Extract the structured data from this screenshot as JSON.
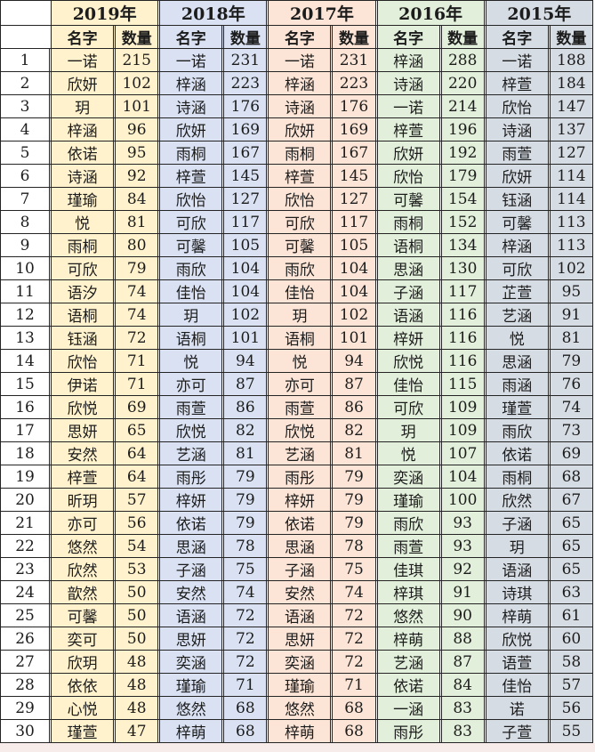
{
  "chart_data": {
    "type": "table",
    "title": "",
    "row_count": 30,
    "subheaders": {
      "name": "名字",
      "count": "数量"
    },
    "row_numbers": [
      1,
      2,
      3,
      4,
      5,
      6,
      7,
      8,
      9,
      10,
      11,
      12,
      13,
      14,
      15,
      16,
      17,
      18,
      19,
      20,
      21,
      22,
      23,
      24,
      25,
      26,
      27,
      28,
      29,
      30
    ],
    "years": [
      {
        "label": "2019年",
        "fill": "#FFF2CC",
        "names": [
          "一诺",
          "欣妍",
          "玥",
          "梓涵",
          "依诺",
          "诗涵",
          "瑾瑜",
          "悦",
          "雨桐",
          "可欣",
          "语汐",
          "语桐",
          "钰涵",
          "欣怡",
          "伊诺",
          "欣悦",
          "思妍",
          "安然",
          "梓萱",
          "昕玥",
          "亦可",
          "悠然",
          "欣然",
          "歆然",
          "可馨",
          "奕可",
          "欣玥",
          "依依",
          "心悦",
          "瑾萱"
        ],
        "counts": [
          215,
          102,
          101,
          96,
          95,
          92,
          84,
          81,
          80,
          79,
          74,
          74,
          72,
          71,
          71,
          69,
          65,
          64,
          64,
          57,
          56,
          54,
          53,
          50,
          50,
          50,
          48,
          48,
          48,
          47
        ]
      },
      {
        "label": "2018年",
        "fill": "#D9E1F2",
        "names": [
          "一诺",
          "梓涵",
          "诗涵",
          "欣妍",
          "雨桐",
          "梓萱",
          "欣怡",
          "可欣",
          "可馨",
          "雨欣",
          "佳怡",
          "玥",
          "语桐",
          "悦",
          "亦可",
          "雨萱",
          "欣悦",
          "艺涵",
          "雨彤",
          "梓妍",
          "依诺",
          "思涵",
          "子涵",
          "安然",
          "语涵",
          "思妍",
          "奕涵",
          "瑾瑜",
          "悠然",
          "梓萌"
        ],
        "counts": [
          231,
          223,
          176,
          169,
          167,
          145,
          127,
          117,
          105,
          104,
          104,
          102,
          101,
          94,
          87,
          86,
          82,
          81,
          79,
          79,
          79,
          78,
          75,
          74,
          72,
          72,
          72,
          71,
          68,
          68
        ]
      },
      {
        "label": "2017年",
        "fill": "#FCE4D6",
        "names": [
          "一诺",
          "梓涵",
          "诗涵",
          "欣妍",
          "雨桐",
          "梓萱",
          "欣怡",
          "可欣",
          "可馨",
          "雨欣",
          "佳怡",
          "玥",
          "语桐",
          "悦",
          "亦可",
          "雨萱",
          "欣悦",
          "艺涵",
          "雨彤",
          "梓妍",
          "依诺",
          "思涵",
          "子涵",
          "安然",
          "语涵",
          "思妍",
          "奕涵",
          "瑾瑜",
          "悠然",
          "梓萌"
        ],
        "counts": [
          231,
          223,
          176,
          169,
          167,
          145,
          127,
          117,
          105,
          104,
          104,
          102,
          101,
          94,
          87,
          86,
          82,
          81,
          79,
          79,
          79,
          78,
          75,
          74,
          72,
          72,
          72,
          71,
          68,
          68
        ]
      },
      {
        "label": "2016年",
        "fill": "#E2EFDA",
        "names": [
          "梓涵",
          "诗涵",
          "一诺",
          "梓萱",
          "欣妍",
          "欣怡",
          "可馨",
          "雨桐",
          "语桐",
          "思涵",
          "子涵",
          "语涵",
          "梓妍",
          "欣悦",
          "佳怡",
          "可欣",
          "玥",
          "悦",
          "奕涵",
          "瑾瑜",
          "雨欣",
          "雨萱",
          "佳琪",
          "梓琪",
          "悠然",
          "梓萌",
          "艺涵",
          "依诺",
          "一涵",
          "雨彤"
        ],
        "counts": [
          288,
          220,
          214,
          196,
          192,
          179,
          154,
          152,
          134,
          130,
          117,
          116,
          116,
          116,
          115,
          109,
          109,
          107,
          104,
          100,
          93,
          93,
          92,
          91,
          90,
          88,
          87,
          84,
          83,
          83
        ]
      },
      {
        "label": "2015年",
        "fill": "#D6DCE4",
        "names": [
          "一诺",
          "梓萱",
          "欣怡",
          "诗涵",
          "雨萱",
          "欣妍",
          "钰涵",
          "可馨",
          "梓涵",
          "可欣",
          "芷萱",
          "艺涵",
          "悦",
          "思涵",
          "雨涵",
          "瑾萱",
          "雨欣",
          "依诺",
          "雨桐",
          "欣然",
          "子涵",
          "玥",
          "语涵",
          "诗琪",
          "梓萌",
          "欣悦",
          "语萱",
          "佳怡",
          "诺",
          "子萱"
        ],
        "counts": [
          188,
          184,
          147,
          137,
          127,
          114,
          114,
          113,
          113,
          102,
          95,
          91,
          81,
          79,
          76,
          74,
          73,
          69,
          68,
          67,
          65,
          65,
          65,
          63,
          61,
          60,
          58,
          57,
          56,
          55
        ]
      }
    ]
  },
  "colors": {
    "border": "#242424",
    "row_number_bg": "#FFFFFF",
    "bottom_strip": "#F7ECE9"
  }
}
